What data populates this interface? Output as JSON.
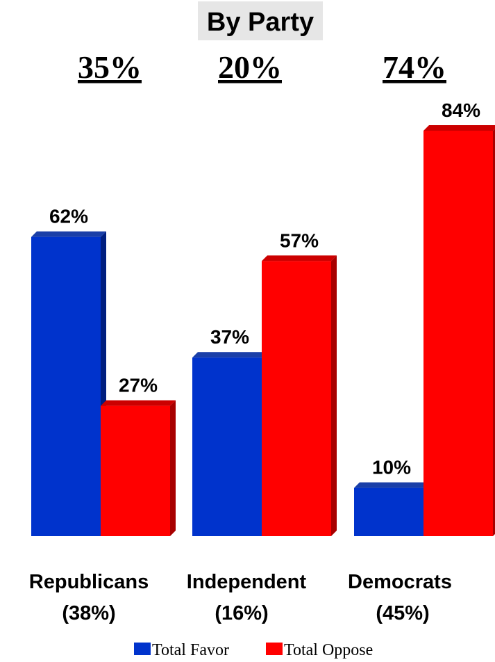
{
  "chart_data": {
    "type": "bar",
    "title": "By Party",
    "categories": [
      "Republicans",
      "Independent",
      "Democrats"
    ],
    "category_subtitles": [
      "(38%)",
      "(16%)",
      "(45%)"
    ],
    "gap_labels": [
      "35%",
      "20%",
      "74%"
    ],
    "series": [
      {
        "name": "Total Favor",
        "values": [
          62,
          37,
          10
        ],
        "labels": [
          "62%",
          "37%",
          "10%"
        ],
        "color": "#0033cc"
      },
      {
        "name": "Total Oppose",
        "values": [
          27,
          57,
          84
        ],
        "labels": [
          "27%",
          "57%",
          "84%"
        ],
        "color": "#ff0000"
      }
    ],
    "ylim": [
      0,
      84
    ],
    "grid": false,
    "legend_position": "bottom"
  },
  "colors": {
    "title_background": "#e6e6e6",
    "favor_front": "#0033cc",
    "favor_side": "#001f80",
    "favor_top": "#1a3fa8",
    "oppose_front": "#ff0000",
    "oppose_side": "#a80000",
    "oppose_top": "#cc0000"
  }
}
